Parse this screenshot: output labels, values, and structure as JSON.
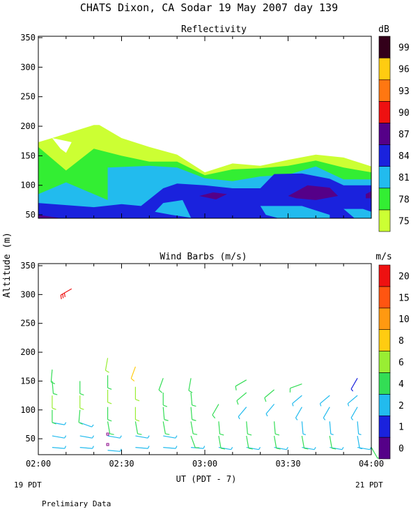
{
  "title": "CHATS Dixon, CA  Sodar  19 May 2007  day 139",
  "footer_left_date": "19 PDT",
  "footer_right_date": "21 PDT",
  "footer_note": "Prelimiary Data",
  "chart_data": [
    {
      "type": "area",
      "title": "Reflectivity",
      "ylabel": "Altitude (m)",
      "ylim": [
        30,
        350
      ],
      "yticks": [
        50,
        100,
        150,
        200,
        250,
        300,
        350
      ],
      "xlim": [
        "02:00",
        "04:00"
      ],
      "legend_unit": "dB",
      "legend": [
        {
          "label": "75",
          "color": "#ccff33"
        },
        {
          "label": "78",
          "color": "#33ee33"
        },
        {
          "label": "81",
          "color": "#22bbee"
        },
        {
          "label": "84",
          "color": "#1a22dd"
        },
        {
          "label": "87",
          "color": "#550088"
        },
        {
          "label": "90",
          "color": "#ee1111"
        },
        {
          "label": "93",
          "color": "#ff7711"
        },
        {
          "label": "96",
          "color": "#ffcc11"
        },
        {
          "label": "99",
          "color": "#33001a"
        }
      ],
      "layers": [
        {
          "threshold": "75",
          "color": "#ccff33",
          "points": [
            [
              "02:00",
              173
            ],
            [
              "02:05",
              180
            ],
            [
              "02:20",
              202
            ],
            [
              "02:22",
              202
            ],
            [
              "02:30",
              180
            ],
            [
              "02:40",
              165
            ],
            [
              "02:50",
              152
            ],
            [
              "03:00",
              122
            ],
            [
              "03:10",
              137
            ],
            [
              "03:20",
              133
            ],
            [
              "03:30",
              143
            ],
            [
              "03:40",
              152
            ],
            [
              "03:50",
              147
            ],
            [
              "04:00",
              132
            ],
            [
              "04:00",
              40
            ],
            [
              "02:00",
              40
            ]
          ]
        },
        {
          "threshold": "78",
          "color": "#33ee33",
          "points": [
            [
              "02:00",
              165
            ],
            [
              "02:05",
              145
            ],
            [
              "02:10",
              125
            ],
            [
              "02:20",
              162
            ],
            [
              "02:30",
              150
            ],
            [
              "02:40",
              140
            ],
            [
              "02:50",
              140
            ],
            [
              "03:00",
              117
            ],
            [
              "03:10",
              127
            ],
            [
              "03:20",
              129
            ],
            [
              "03:30",
              133
            ],
            [
              "03:40",
              142
            ],
            [
              "03:50",
              130
            ],
            [
              "04:00",
              122
            ],
            [
              "04:00",
              40
            ],
            [
              "02:00",
              40
            ]
          ]
        },
        {
          "threshold": "81",
          "color": "#22bbee",
          "points": [
            [
              "02:00",
              85
            ],
            [
              "02:10",
              105
            ],
            [
              "02:15",
              95
            ],
            [
              "02:25",
              75
            ],
            [
              "02:25",
              130
            ],
            [
              "02:40",
              133
            ],
            [
              "02:50",
              130
            ],
            [
              "03:00",
              112
            ],
            [
              "03:10",
              107
            ],
            [
              "03:20",
              115
            ],
            [
              "03:30",
              118
            ],
            [
              "03:40",
              132
            ],
            [
              "03:50",
              110
            ],
            [
              "04:00",
              110
            ],
            [
              "04:00",
              40
            ],
            [
              "02:00",
              40
            ]
          ]
        },
        {
          "threshold": "84",
          "color": "#1a22dd",
          "points": [
            [
              "02:00",
              70
            ],
            [
              "02:20",
              63
            ],
            [
              "02:30",
              68
            ],
            [
              "02:37",
              65
            ],
            [
              "02:45",
              95
            ],
            [
              "02:50",
              103
            ],
            [
              "03:00",
              100
            ],
            [
              "03:10",
              95
            ],
            [
              "03:20",
              95
            ],
            [
              "03:25",
              119
            ],
            [
              "03:35",
              120
            ],
            [
              "03:45",
              111
            ],
            [
              "03:50",
              100
            ],
            [
              "04:00",
              100
            ],
            [
              "04:00",
              40
            ],
            [
              "02:00",
              40
            ]
          ]
        },
        {
          "threshold": "84-inner",
          "color": "#22bbee",
          "points": [
            [
              "02:42",
              55
            ],
            [
              "02:45",
              70
            ],
            [
              "02:52",
              75
            ],
            [
              "02:55",
              45
            ],
            [
              "02:48",
              50
            ]
          ]
        },
        {
          "threshold": "84-inner",
          "color": "#22bbee",
          "points": [
            [
              "03:20",
              65
            ],
            [
              "03:35",
              65
            ],
            [
              "03:45",
              50
            ],
            [
              "03:45",
              40
            ],
            [
              "03:30",
              40
            ],
            [
              "03:22",
              50
            ]
          ]
        },
        {
          "threshold": "84-inner",
          "color": "#22bbee",
          "points": [
            [
              "03:50",
              60
            ],
            [
              "03:57",
              60
            ],
            [
              "04:00",
              55
            ],
            [
              "04:00",
              40
            ],
            [
              "03:55",
              40
            ]
          ]
        },
        {
          "threshold": "87",
          "color": "#550088",
          "points": [
            [
              "02:58",
              82
            ],
            [
              "03:03",
              88
            ],
            [
              "03:08",
              85
            ],
            [
              "03:04",
              76
            ]
          ]
        },
        {
          "threshold": "87",
          "color": "#550088",
          "points": [
            [
              "03:30",
              82
            ],
            [
              "03:37",
              100
            ],
            [
              "03:45",
              96
            ],
            [
              "03:48",
              82
            ],
            [
              "03:40",
              75
            ],
            [
              "03:33",
              78
            ]
          ]
        },
        {
          "threshold": "87",
          "color": "#550088",
          "points": [
            [
              "03:58",
              85
            ],
            [
              "04:00",
              90
            ],
            [
              "04:00",
              78
            ],
            [
              "03:58",
              78
            ]
          ]
        },
        {
          "threshold": "87",
          "color": "#550088",
          "points": [
            [
              "02:00",
              50
            ],
            [
              "02:07",
              45
            ],
            [
              "02:10",
              40
            ],
            [
              "02:00",
              40
            ]
          ]
        }
      ],
      "gap_points": [
        [
          "02:05",
          180
        ],
        [
          "02:12",
          173
        ],
        [
          "02:10",
          155
        ],
        [
          "02:08",
          162
        ]
      ]
    },
    {
      "type": "scatter",
      "title": "Wind Barbs (m/s)",
      "ylabel": "Altitude (m)",
      "ylim": [
        20,
        350
      ],
      "yticks": [
        50,
        100,
        150,
        200,
        250,
        300,
        350
      ],
      "xticks": [
        "02:00",
        "02:30",
        "03:00",
        "03:30",
        "04:00"
      ],
      "xlabel": "UT  (PDT - 7)",
      "legend_unit": "m/s",
      "legend": [
        {
          "label": "0",
          "color": "#550088"
        },
        {
          "label": "1",
          "color": "#1a22dd"
        },
        {
          "label": "2",
          "color": "#22bbee"
        },
        {
          "label": "4",
          "color": "#33dd55"
        },
        {
          "label": "6",
          "color": "#99ee33"
        },
        {
          "label": "8",
          "color": "#ffcc11"
        },
        {
          "label": "10",
          "color": "#ff9911"
        },
        {
          "label": "15",
          "color": "#ff5511"
        },
        {
          "label": "20",
          "color": "#ee1111"
        }
      ],
      "barbs": [
        {
          "x": "02:05",
          "y": 35,
          "s": 3,
          "d": 95
        },
        {
          "x": "02:05",
          "y": 55,
          "s": 3,
          "d": 100
        },
        {
          "x": "02:05",
          "y": 78,
          "s": 2,
          "d": 100
        },
        {
          "x": "02:05",
          "y": 100,
          "s": 5,
          "d": 180
        },
        {
          "x": "02:05",
          "y": 125,
          "s": 6,
          "d": 180
        },
        {
          "x": "02:05",
          "y": 150,
          "s": 5,
          "d": 175
        },
        {
          "x": "02:05",
          "y": 170,
          "s": 5,
          "d": 185
        },
        {
          "x": "02:15",
          "y": 35,
          "s": 3,
          "d": 95
        },
        {
          "x": "02:15",
          "y": 55,
          "s": 3,
          "d": 100
        },
        {
          "x": "02:15",
          "y": 78,
          "s": 2,
          "d": 110
        },
        {
          "x": "02:15",
          "y": 100,
          "s": 5,
          "d": 185
        },
        {
          "x": "02:15",
          "y": 125,
          "s": 6,
          "d": 180
        },
        {
          "x": "02:15",
          "y": 150,
          "s": 5,
          "d": 180
        },
        {
          "x": "02:12",
          "y": 310,
          "s": 20,
          "d": 240
        },
        {
          "x": "02:25",
          "y": 30,
          "s": 3,
          "d": 95
        },
        {
          "x": "02:25",
          "y": 55,
          "s": 3,
          "d": 100
        },
        {
          "x": "02:25",
          "y": 80,
          "s": 5,
          "d": 170
        },
        {
          "x": "02:25",
          "y": 105,
          "s": 5,
          "d": 180
        },
        {
          "x": "02:25",
          "y": 135,
          "s": 6,
          "d": 180
        },
        {
          "x": "02:25",
          "y": 160,
          "s": 5,
          "d": 180
        },
        {
          "x": "02:25",
          "y": 190,
          "s": 6,
          "d": 190
        },
        {
          "x": "02:35",
          "y": 35,
          "s": 3,
          "d": 95
        },
        {
          "x": "02:35",
          "y": 55,
          "s": 3,
          "d": 100
        },
        {
          "x": "02:35",
          "y": 80,
          "s": 5,
          "d": 170
        },
        {
          "x": "02:35",
          "y": 105,
          "s": 6,
          "d": 180
        },
        {
          "x": "02:35",
          "y": 140,
          "s": 6,
          "d": 180
        },
        {
          "x": "02:35",
          "y": 175,
          "s": 8,
          "d": 200
        },
        {
          "x": "02:45",
          "y": 35,
          "s": 3,
          "d": 95
        },
        {
          "x": "02:45",
          "y": 55,
          "s": 3,
          "d": 100
        },
        {
          "x": "02:45",
          "y": 80,
          "s": 4,
          "d": 170
        },
        {
          "x": "02:45",
          "y": 105,
          "s": 5,
          "d": 175
        },
        {
          "x": "02:45",
          "y": 130,
          "s": 5,
          "d": 180
        },
        {
          "x": "02:45",
          "y": 155,
          "s": 5,
          "d": 200
        },
        {
          "x": "02:55",
          "y": 35,
          "s": 3,
          "d": 95
        },
        {
          "x": "02:55",
          "y": 55,
          "s": 4,
          "d": 160
        },
        {
          "x": "02:55",
          "y": 80,
          "s": 4,
          "d": 170
        },
        {
          "x": "02:55",
          "y": 105,
          "s": 5,
          "d": 175
        },
        {
          "x": "02:55",
          "y": 130,
          "s": 5,
          "d": 175
        },
        {
          "x": "02:55",
          "y": 155,
          "s": 5,
          "d": 190
        },
        {
          "x": "03:05",
          "y": 35,
          "s": 3,
          "d": 100
        },
        {
          "x": "03:05",
          "y": 55,
          "s": 4,
          "d": 170
        },
        {
          "x": "03:05",
          "y": 80,
          "s": 4,
          "d": 175
        },
        {
          "x": "03:05",
          "y": 110,
          "s": 4,
          "d": 210
        },
        {
          "x": "03:15",
          "y": 35,
          "s": 3,
          "d": 100
        },
        {
          "x": "03:15",
          "y": 55,
          "s": 4,
          "d": 170
        },
        {
          "x": "03:15",
          "y": 80,
          "s": 4,
          "d": 175
        },
        {
          "x": "03:15",
          "y": 105,
          "s": 3,
          "d": 220
        },
        {
          "x": "03:15",
          "y": 130,
          "s": 4,
          "d": 230
        },
        {
          "x": "03:15",
          "y": 152,
          "s": 4,
          "d": 240
        },
        {
          "x": "03:25",
          "y": 35,
          "s": 3,
          "d": 100
        },
        {
          "x": "03:25",
          "y": 55,
          "s": 4,
          "d": 170
        },
        {
          "x": "03:25",
          "y": 80,
          "s": 4,
          "d": 175
        },
        {
          "x": "03:25",
          "y": 110,
          "s": 3,
          "d": 220
        },
        {
          "x": "03:25",
          "y": 135,
          "s": 4,
          "d": 230
        },
        {
          "x": "03:35",
          "y": 35,
          "s": 3,
          "d": 100
        },
        {
          "x": "03:35",
          "y": 55,
          "s": 4,
          "d": 170
        },
        {
          "x": "03:35",
          "y": 80,
          "s": 3,
          "d": 175
        },
        {
          "x": "03:35",
          "y": 105,
          "s": 3,
          "d": 210
        },
        {
          "x": "03:35",
          "y": 125,
          "s": 3,
          "d": 230
        },
        {
          "x": "03:35",
          "y": 145,
          "s": 4,
          "d": 250
        },
        {
          "x": "03:45",
          "y": 35,
          "s": 3,
          "d": 100
        },
        {
          "x": "03:45",
          "y": 55,
          "s": 4,
          "d": 170
        },
        {
          "x": "03:45",
          "y": 80,
          "s": 3,
          "d": 175
        },
        {
          "x": "03:45",
          "y": 105,
          "s": 3,
          "d": 210
        },
        {
          "x": "03:45",
          "y": 125,
          "s": 3,
          "d": 230
        },
        {
          "x": "03:55",
          "y": 35,
          "s": 3,
          "d": 100
        },
        {
          "x": "03:55",
          "y": 55,
          "s": 3,
          "d": 170
        },
        {
          "x": "03:55",
          "y": 80,
          "s": 3,
          "d": 175
        },
        {
          "x": "03:55",
          "y": 105,
          "s": 3,
          "d": 210
        },
        {
          "x": "03:55",
          "y": 125,
          "s": 2,
          "d": 230
        },
        {
          "x": "03:55",
          "y": 155,
          "s": 1,
          "d": 210
        },
        {
          "x": "04:00",
          "y": 35,
          "s": 4,
          "d": 150
        }
      ],
      "calm_points": [
        {
          "x": "02:25",
          "y": 58
        },
        {
          "x": "02:25",
          "y": 40
        }
      ]
    }
  ]
}
